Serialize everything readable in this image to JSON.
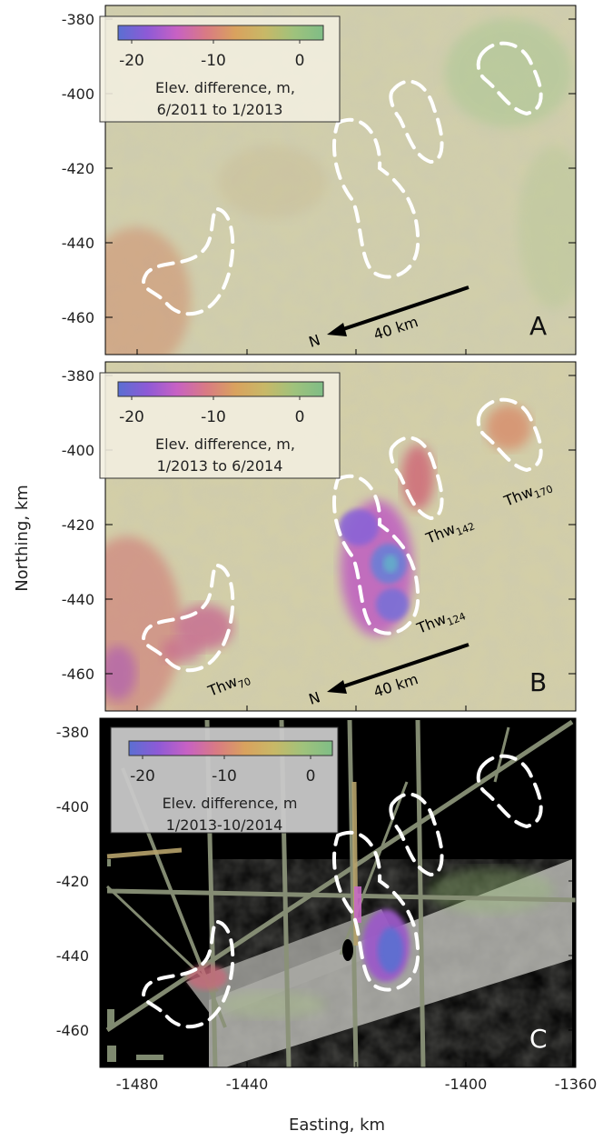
{
  "axes": {
    "y_label": "Northing, km",
    "x_label": "Easting, km",
    "y_ticks": [
      "-380",
      "-400",
      "-420",
      "-440",
      "-460"
    ],
    "x_ticks": [
      "-1480",
      "-1440",
      "-1400",
      "-1360"
    ]
  },
  "colorbar": {
    "ticks": [
      "-20",
      "-10",
      "0"
    ],
    "colors": [
      "#5a6fd2",
      "#8e5ad6",
      "#c761c4",
      "#d97a84",
      "#d9a25e",
      "#c8b867",
      "#9fc27c",
      "#7fbd86"
    ]
  },
  "panels": [
    {
      "letter": "A",
      "legend_line1": "Elev. difference, m,",
      "legend_line2": "6/2011 to 1/2013",
      "scale_label": "40 km",
      "north_label": "N"
    },
    {
      "letter": "B",
      "legend_line1": "Elev. difference, m,",
      "legend_line2": "1/2013 to 6/2014",
      "scale_label": "40 km",
      "north_label": "N"
    },
    {
      "letter": "C",
      "legend_line1": "Elev. difference, m",
      "legend_line2": "1/2013-10/2014"
    }
  ],
  "lake_labels": [
    {
      "name": "Thw",
      "sub": "70"
    },
    {
      "name": "Thw",
      "sub": "124"
    },
    {
      "name": "Thw",
      "sub": "142"
    },
    {
      "name": "Thw",
      "sub": "170"
    }
  ]
}
